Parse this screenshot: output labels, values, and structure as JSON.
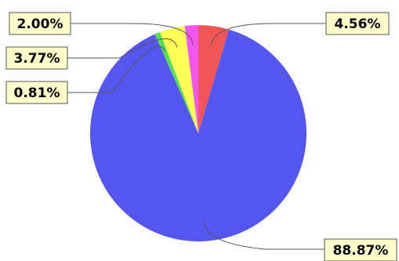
{
  "chart_data": {
    "type": "pie",
    "start_angle_deg": 90,
    "direction": "clockwise",
    "slices": [
      {
        "value": 4.56,
        "label": "4.56%",
        "color": "#f25555"
      },
      {
        "value": 88.87,
        "label": "88.87%",
        "color": "#5555f0"
      },
      {
        "value": 0.81,
        "label": "0.81%",
        "color": "#55dd55"
      },
      {
        "value": 3.77,
        "label": "3.77%",
        "color": "#ffff55"
      },
      {
        "value": 2.0,
        "label": "2.00%",
        "color": "#f255f2"
      }
    ],
    "legend": "none"
  }
}
